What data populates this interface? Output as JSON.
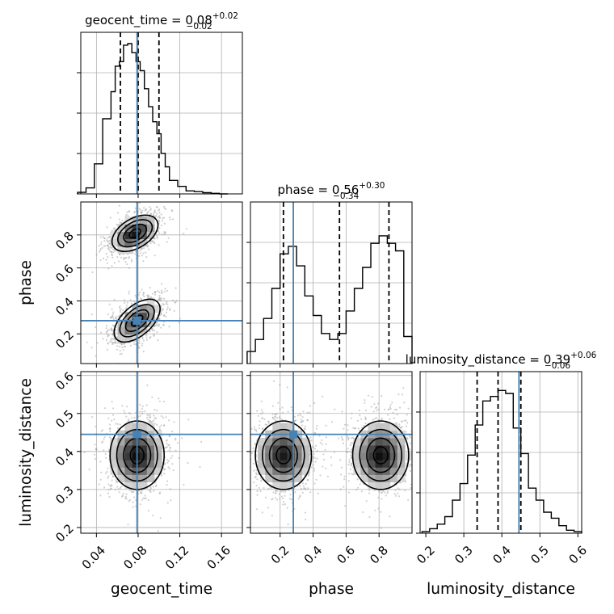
{
  "chart_data": {
    "type": "corner",
    "parameters": [
      "geocent_time",
      "phase",
      "luminosity_distance"
    ],
    "truths": {
      "geocent_time": 0.079,
      "phase": 0.28,
      "luminosity_distance": 0.445
    },
    "histograms_1d": [
      {
        "parameter": "geocent_time",
        "title": {
          "prefix": "geocent_time = 0.08",
          "plus": "+0.02",
          "minus": "−0.02"
        },
        "range": [
          0.02,
          0.18
        ],
        "quantiles": [
          0.063,
          0.08,
          0.1
        ],
        "bin_edges": [
          0.022,
          0.03,
          0.038,
          0.046,
          0.054,
          0.058,
          0.062,
          0.066,
          0.07,
          0.074,
          0.078,
          0.082,
          0.086,
          0.09,
          0.094,
          0.098,
          0.102,
          0.106,
          0.11,
          0.118,
          0.126,
          0.134,
          0.142,
          0.15,
          0.158,
          0.166
        ],
        "counts": [
          0.01,
          0.04,
          0.2,
          0.5,
          0.68,
          0.85,
          0.88,
          0.99,
          1.0,
          0.94,
          0.88,
          0.82,
          0.7,
          0.58,
          0.48,
          0.4,
          0.27,
          0.18,
          0.09,
          0.05,
          0.02,
          0.015,
          0.008,
          0.004,
          0.0
        ]
      },
      {
        "parameter": "phase",
        "title": {
          "prefix": "phase = 0.56",
          "plus": "+0.30",
          "minus": "−0.34"
        },
        "range": [
          0.0,
          1.0
        ],
        "quantiles": [
          0.22,
          0.56,
          0.86
        ],
        "bin_edges": [
          0.0,
          0.05,
          0.1,
          0.15,
          0.2,
          0.25,
          0.3,
          0.35,
          0.4,
          0.45,
          0.5,
          0.55,
          0.6,
          0.65,
          0.7,
          0.75,
          0.8,
          0.85,
          0.9,
          0.95,
          1.0
        ],
        "counts": [
          0.08,
          0.16,
          0.3,
          0.5,
          0.73,
          0.78,
          0.65,
          0.45,
          0.32,
          0.2,
          0.16,
          0.2,
          0.35,
          0.5,
          0.64,
          0.8,
          0.85,
          0.8,
          0.75,
          0.18
        ]
      },
      {
        "parameter": "luminosity_distance",
        "title": {
          "prefix": "luminosity_distance = 0.39",
          "plus": "+0.06",
          "minus": "−0.06"
        },
        "range": [
          0.18,
          0.62
        ],
        "quantiles": [
          0.335,
          0.39,
          0.45
        ],
        "bin_edges": [
          0.19,
          0.21,
          0.23,
          0.25,
          0.27,
          0.29,
          0.31,
          0.33,
          0.35,
          0.37,
          0.39,
          0.41,
          0.43,
          0.45,
          0.47,
          0.49,
          0.51,
          0.53,
          0.55,
          0.57,
          0.59,
          0.61
        ],
        "counts": [
          0.01,
          0.03,
          0.06,
          0.11,
          0.22,
          0.33,
          0.52,
          0.72,
          0.88,
          0.91,
          0.95,
          0.93,
          0.7,
          0.53,
          0.3,
          0.22,
          0.14,
          0.1,
          0.05,
          0.02,
          0.01
        ]
      }
    ],
    "axis_ticks": {
      "geocent_time": [
        "0.04",
        "0.08",
        "0.12",
        "0.16"
      ],
      "phase": [
        "0.2",
        "0.4",
        "0.6",
        "0.8"
      ],
      "luminosity_distance": [
        "0.2",
        "0.3",
        "0.4",
        "0.5",
        "0.6"
      ]
    },
    "axis_labels": {
      "geocent_time": "geocent_time",
      "phase": "phase",
      "luminosity_distance": "luminosity_distance"
    },
    "density_2d": [
      {
        "x": "geocent_time",
        "y": "phase",
        "modes": [
          {
            "x": 0.079,
            "y": 0.28,
            "sx": 0.011,
            "sy": 0.065,
            "rho": 0.55,
            "peak": 0.85
          },
          {
            "x": 0.077,
            "y": 0.81,
            "sx": 0.011,
            "sy": 0.055,
            "rho": 0.45,
            "peak": 1.0
          }
        ]
      },
      {
        "x": "geocent_time",
        "y": "luminosity_distance",
        "modes": [
          {
            "x": 0.079,
            "y": 0.39,
            "sx": 0.013,
            "sy": 0.045,
            "rho": 0.0,
            "peak": 1.0
          }
        ]
      },
      {
        "x": "phase",
        "y": "luminosity_distance",
        "modes": [
          {
            "x": 0.22,
            "y": 0.39,
            "sx": 0.085,
            "sy": 0.045,
            "rho": 0.0,
            "peak": 0.95
          },
          {
            "x": 0.81,
            "y": 0.39,
            "sx": 0.085,
            "sy": 0.045,
            "rho": 0.0,
            "peak": 1.0
          }
        ]
      }
    ],
    "colors": {
      "truth": "#4682b4",
      "hist": "#000000",
      "grid": "#b0b0b0"
    },
    "grid": true
  }
}
